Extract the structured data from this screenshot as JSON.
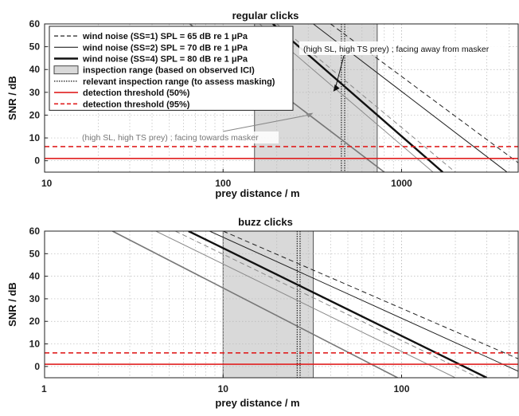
{
  "chart_data": [
    {
      "type": "line",
      "title": "regular clicks",
      "xlabel": "prey distance / m",
      "ylabel": "SNR / dB",
      "x_scale": "log",
      "xlim": [
        10,
        4500
      ],
      "ylim": [
        -5,
        60
      ],
      "x_ticks": [
        10,
        100,
        1000
      ],
      "x_tick_labels": [
        "10",
        "100",
        "1000"
      ],
      "y_ticks": [
        0,
        10,
        20,
        30,
        40,
        50,
        60
      ],
      "y_tick_labels": [
        "0",
        "10",
        "20",
        "30",
        "40",
        "50",
        "60"
      ],
      "grid": true,
      "legend_position": "top-left",
      "legend": [
        {
          "label": "wind noise (SS=1) SPL = 65 dB re 1 μPa",
          "style": "dashed",
          "color": "#222222"
        },
        {
          "label": "wind noise (SS=2) SPL = 70 dB re 1 μPa",
          "style": "solid-thin",
          "color": "#222222"
        },
        {
          "label": "wind noise (SS=4) SPL = 80 dB re 1 μPa",
          "style": "solid-thick",
          "color": "#111111"
        },
        {
          "label": "inspection range (based on observed ICI)",
          "style": "box",
          "color": "#d9d9d9"
        },
        {
          "label": "relevant inspection range (to assess masking)",
          "style": "dotted",
          "color": "#111111"
        },
        {
          "label": "detection threshold (50%)",
          "style": "solid",
          "color": "#e02020"
        },
        {
          "label": "detection threshold (95%)",
          "style": "dashed",
          "color": "#e02020"
        }
      ],
      "inspection_range": [
        150,
        730
      ],
      "relevant_inspection_lines": [
        460,
        480
      ],
      "thresholds": [
        {
          "label": "detection threshold (50%)",
          "y": 1,
          "style": "solid",
          "color": "#e02020"
        },
        {
          "label": "detection threshold (95%)",
          "y": 6.2,
          "style": "dashed",
          "color": "#e02020"
        }
      ],
      "series": [
        {
          "name": "wind noise (SS=1) SPL = 65 dB re 1 μPa",
          "style": "dashed",
          "x": [
            400,
            4500
          ],
          "y": [
            60,
            -0.9
          ]
        },
        {
          "name": "wind noise (SS=2) SPL = 70 dB re 1 μPa",
          "style": "solid-thin",
          "x": [
            320,
            3900
          ],
          "y": [
            60,
            -5
          ]
        },
        {
          "name": "wind noise (SS=4) SPL = 80 dB re 1 μPa",
          "style": "solid-thick",
          "x": [
            190,
            1700
          ],
          "y": [
            60,
            -5
          ]
        },
        {
          "style": "dashed-gray",
          "x": [
            200,
            2000
          ],
          "y": [
            60,
            -5
          ]
        },
        {
          "style": "solid-thin-gray",
          "x": [
            160,
            1500
          ],
          "y": [
            60,
            -5
          ]
        },
        {
          "style": "solid-gray",
          "x": [
            65,
            800
          ],
          "y": [
            60,
            -5
          ]
        }
      ],
      "annotations": [
        {
          "text": "(high SL, high TS prey) ; facing away from masker",
          "arrow_to": [
            410,
            30
          ]
        },
        {
          "text": "(high SL, high TS prey) ; facing towards masker",
          "arrow_to": [
            320,
            21
          ]
        }
      ]
    },
    {
      "type": "line",
      "title": "buzz clicks",
      "xlabel": "prey distance / m",
      "ylabel": "SNR / dB",
      "x_scale": "log",
      "xlim": [
        1,
        450
      ],
      "ylim": [
        -5,
        60
      ],
      "x_ticks": [
        1,
        10,
        100
      ],
      "x_tick_labels": [
        "1",
        "10",
        "100"
      ],
      "y_ticks": [
        0,
        10,
        20,
        30,
        40,
        50,
        60
      ],
      "y_tick_labels": [
        "0",
        "10",
        "20",
        "30",
        "40",
        "50",
        "60"
      ],
      "grid": true,
      "inspection_range": [
        10,
        32
      ],
      "relevant_inspection_lines": [
        26,
        27
      ],
      "thresholds": [
        {
          "y": 1,
          "style": "solid",
          "color": "#e02020"
        },
        {
          "y": 6,
          "style": "dashed",
          "color": "#e02020"
        }
      ],
      "series": [
        {
          "style": "dashed",
          "x": [
            10,
            450
          ],
          "y": [
            60,
            3.4
          ]
        },
        {
          "style": "solid-thin",
          "x": [
            8.4,
            450
          ],
          "y": [
            60,
            -2.1
          ]
        },
        {
          "style": "solid-thick",
          "x": [
            6.4,
            300
          ],
          "y": [
            60,
            -5
          ]
        },
        {
          "style": "dashed-gray",
          "x": [
            5.4,
            270
          ],
          "y": [
            60,
            -5
          ]
        },
        {
          "style": "solid-thin-gray",
          "x": [
            4.2,
            200
          ],
          "y": [
            60,
            -5
          ]
        },
        {
          "style": "solid-gray",
          "x": [
            2.4,
            95
          ],
          "y": [
            60,
            -5
          ]
        }
      ]
    }
  ]
}
